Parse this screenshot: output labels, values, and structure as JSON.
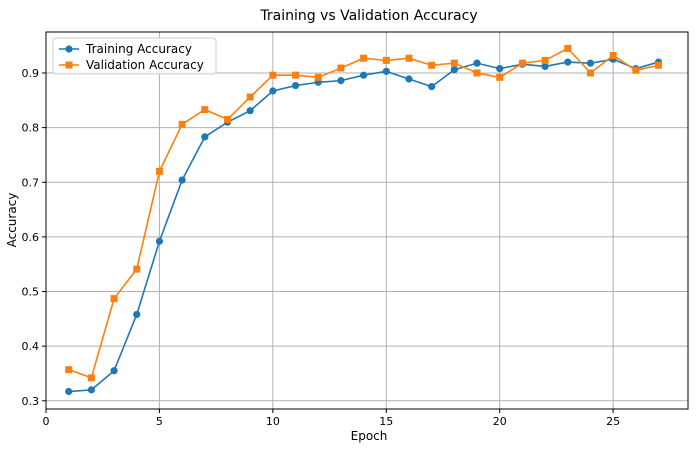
{
  "chart_data": {
    "type": "line",
    "title": "Training vs Validation Accuracy",
    "xlabel": "Epoch",
    "ylabel": "Accuracy",
    "xlim": [
      0,
      28.3
    ],
    "ylim": [
      0.285,
      0.975
    ],
    "xticks": [
      0,
      5,
      10,
      15,
      20,
      25
    ],
    "yticks": [
      0.3,
      0.4,
      0.5,
      0.6,
      0.7,
      0.8,
      0.9
    ],
    "grid": true,
    "legend_position": "top-left",
    "x": [
      1,
      2,
      3,
      4,
      5,
      6,
      7,
      8,
      9,
      10,
      11,
      12,
      13,
      14,
      15,
      16,
      17,
      18,
      19,
      20,
      21,
      22,
      23,
      24,
      25,
      26,
      27
    ],
    "series": [
      {
        "name": "Training Accuracy",
        "color": "#1f77b4",
        "marker": "circle",
        "values": [
          0.317,
          0.32,
          0.355,
          0.458,
          0.592,
          0.704,
          0.783,
          0.81,
          0.831,
          0.867,
          0.877,
          0.883,
          0.886,
          0.896,
          0.903,
          0.889,
          0.875,
          0.906,
          0.918,
          0.908,
          0.916,
          0.912,
          0.92,
          0.918,
          0.925,
          0.908,
          0.92
        ]
      },
      {
        "name": "Validation Accuracy",
        "color": "#ff7f0e",
        "marker": "square",
        "values": [
          0.357,
          0.342,
          0.487,
          0.541,
          0.72,
          0.806,
          0.833,
          0.815,
          0.856,
          0.896,
          0.896,
          0.892,
          0.909,
          0.927,
          0.923,
          0.927,
          0.914,
          0.918,
          0.9,
          0.892,
          0.918,
          0.923,
          0.945,
          0.9,
          0.932,
          0.905,
          0.914
        ]
      }
    ]
  }
}
